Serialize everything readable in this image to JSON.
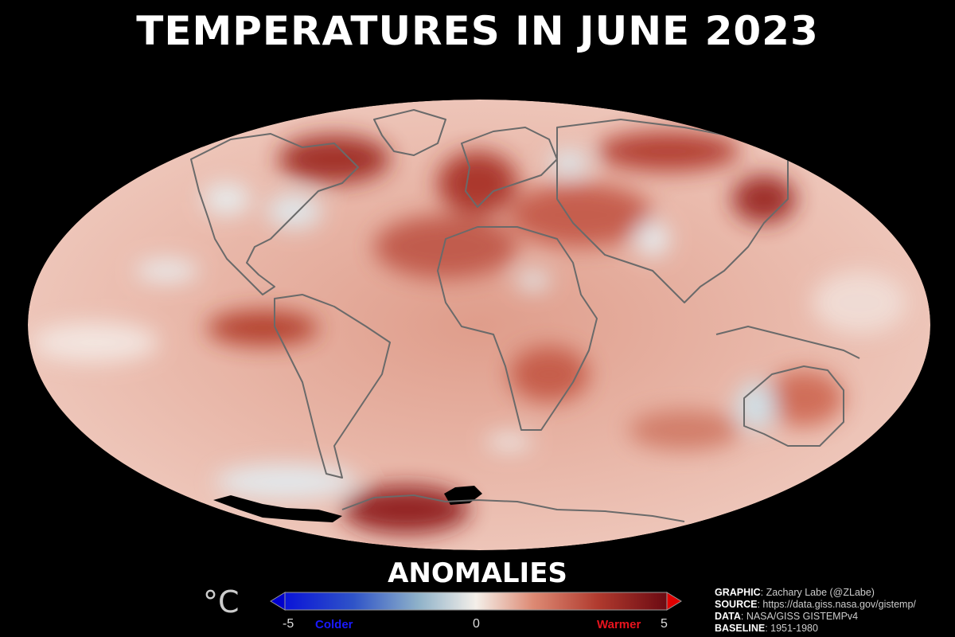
{
  "title": "TEMPERATURES IN JUNE 2023",
  "legend": {
    "title": "ANOMALIES",
    "unit": "°C",
    "min_label": "-5",
    "mid_label": "0",
    "max_label": "5",
    "cold_label": "Colder",
    "warm_label": "Warmer",
    "range": [
      -5,
      5
    ],
    "colors": {
      "cold": "#0000cc",
      "neutral": "#f5f0ec",
      "warm": "#cc0000",
      "cold_text": "#1a1aff",
      "warm_text": "#e8141e"
    }
  },
  "credits": {
    "graphic_key": "GRAPHIC",
    "graphic_val": ": Zachary Labe (@ZLabe)",
    "source_key": "SOURCE",
    "source_val": ": https://data.giss.nasa.gov/gistemp/",
    "data_key": "DATA",
    "data_val": ": NASA/GISS GISTEMPv4",
    "baseline_key": "BASELINE",
    "baseline_val": ": 1951-1980"
  },
  "map": {
    "projection": "Mollweide",
    "background": "#000000",
    "base_color": "#e3a594",
    "coastline_color": "#6a6a6a"
  }
}
